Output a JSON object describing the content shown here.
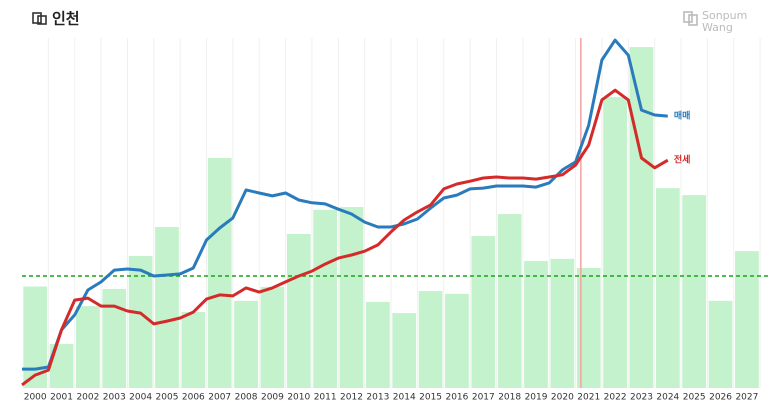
{
  "chart_data": {
    "type": "bar",
    "title": "인천",
    "brand": [
      "Sonpum",
      "Wang"
    ],
    "categories": [
      "2000",
      "2001",
      "2002",
      "2003",
      "2004",
      "2005",
      "2006",
      "2007",
      "2008",
      "2009",
      "2010",
      "2011",
      "2012",
      "2013",
      "2014",
      "2015",
      "2016",
      "2017",
      "2018",
      "2019",
      "2020",
      "2021",
      "2022",
      "2023",
      "2024",
      "2025",
      "2026",
      "2027"
    ],
    "values": [
      29,
      12.6,
      23.4,
      28.3,
      37.7,
      46,
      21.7,
      65.7,
      24.9,
      28.9,
      44,
      50.9,
      51.7,
      24.6,
      21.4,
      27.7,
      26.9,
      43.4,
      49.7,
      36.3,
      36.9,
      34.3,
      83.1,
      97.4,
      57.1,
      55.1,
      24.9,
      39.1
    ],
    "color": "#c3f2cc",
    "xlim": [
      1999.5,
      2027.8
    ],
    "ylim": [
      0,
      100
    ],
    "hline": {
      "value": 32,
      "color": "#1aa31a"
    },
    "vline": {
      "value": 2020.7,
      "color": "#f4a3a3"
    },
    "series": [
      {
        "name": "매매",
        "type": "line",
        "color": "#2a7bbd",
        "x": [
          1999.5,
          2000,
          2000.5,
          2001,
          2001.5,
          2002,
          2002.5,
          2003,
          2003.5,
          2004,
          2004.5,
          2005,
          2005.5,
          2006,
          2006.5,
          2007,
          2007.5,
          2008,
          2008.5,
          2009,
          2009.5,
          2010,
          2010.5,
          2011,
          2011.5,
          2012,
          2012.5,
          2013,
          2013.5,
          2014,
          2014.5,
          2015,
          2015.5,
          2016,
          2016.5,
          2017,
          2017.5,
          2018,
          2018.5,
          2019,
          2019.5,
          2020,
          2020.5,
          2021,
          2021.5,
          2022,
          2022.5,
          2023,
          2023.5,
          2024
        ],
        "values": [
          5.4,
          5.4,
          6,
          16.6,
          20.9,
          28,
          30.3,
          33.7,
          34,
          33.7,
          32,
          32.3,
          32.6,
          34.3,
          42.3,
          45.7,
          48.6,
          56.6,
          55.7,
          54.9,
          55.7,
          53.7,
          52.9,
          52.6,
          51.1,
          49.7,
          47.4,
          46,
          46,
          46.9,
          48.3,
          51.4,
          54.3,
          55.1,
          56.9,
          57.1,
          57.7,
          57.7,
          57.7,
          57.4,
          58.6,
          62.3,
          64.6,
          75.1,
          93.7,
          99.4,
          95.1,
          79.4,
          78,
          77.7
        ]
      },
      {
        "name": "전세",
        "type": "line",
        "color": "#d42a2a",
        "x": [
          1999.5,
          2000,
          2000.5,
          2001,
          2001.5,
          2002,
          2002.5,
          2003,
          2003.5,
          2004,
          2004.5,
          2005,
          2005.5,
          2006,
          2006.5,
          2007,
          2007.5,
          2008,
          2008.5,
          2009,
          2009.5,
          2010,
          2010.5,
          2011,
          2011.5,
          2012,
          2012.5,
          2013,
          2013.5,
          2014,
          2014.5,
          2015,
          2015.5,
          2016,
          2016.5,
          2017,
          2017.5,
          2018,
          2018.5,
          2019,
          2019.5,
          2020,
          2020.5,
          2021,
          2021.5,
          2022,
          2022.5,
          2023,
          2023.5,
          2024
        ],
        "values": [
          0.9,
          3.7,
          5.1,
          16.6,
          25.1,
          25.7,
          23.4,
          23.4,
          22,
          21.4,
          18.3,
          19.1,
          20,
          21.7,
          25.4,
          26.6,
          26.3,
          28.6,
          27.4,
          28.6,
          30.3,
          32,
          33.4,
          35.4,
          37.1,
          38,
          39.1,
          40.9,
          44.6,
          48,
          50.3,
          52.3,
          56.9,
          58.3,
          59.1,
          60,
          60.3,
          60,
          60,
          59.7,
          60.3,
          60.9,
          63.7,
          69.4,
          82.3,
          85.1,
          82.3,
          65.7,
          62.9,
          65.1
        ]
      }
    ]
  }
}
